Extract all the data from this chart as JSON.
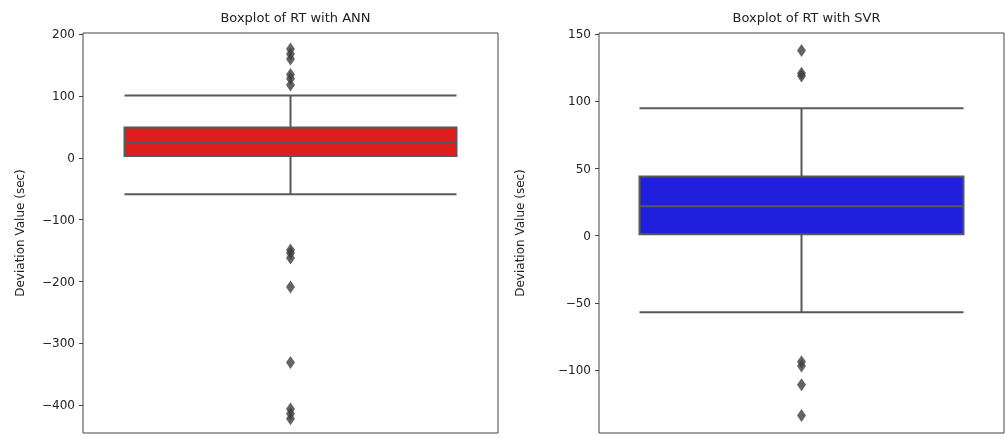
{
  "chart_data": [
    {
      "type": "box",
      "title": "Boxplot of RT with ANN",
      "ylabel": "Deviation Value (sec)",
      "categories": [
        null
      ],
      "color": "#dc1e1e",
      "marker": "diamond",
      "boxes": [
        {
          "low": -59,
          "q1": 3,
          "median": 25,
          "q3": 49,
          "high": 101,
          "outliers": [
            176,
            168,
            160,
            135,
            128,
            118,
            -149,
            -154,
            -162,
            -209,
            -331,
            -406,
            -414,
            -422
          ]
        }
      ],
      "ylim": [
        -445,
        202
      ],
      "yticks": [
        -400,
        -300,
        -200,
        -100,
        0,
        100,
        200
      ]
    },
    {
      "type": "box",
      "title": "Boxplot of RT with SVR",
      "ylabel": "Deviation Value (sec)",
      "categories": [
        null
      ],
      "color": "#1f1fdd",
      "marker": "diamond",
      "boxes": [
        {
          "low": -57,
          "q1": 1,
          "median": 22,
          "q3": 44,
          "high": 95,
          "outliers": [
            138,
            121,
            119,
            -94,
            -97,
            -111,
            -134
          ]
        }
      ],
      "ylim": [
        -147,
        151
      ],
      "yticks": [
        -100,
        -50,
        0,
        50,
        100,
        150
      ]
    }
  ]
}
